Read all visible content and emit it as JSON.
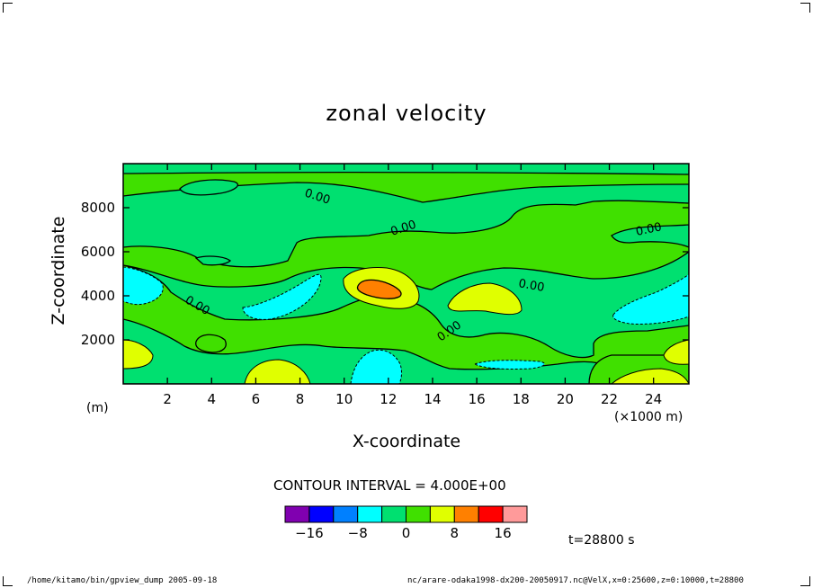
{
  "chart_data": {
    "type": "heatmap",
    "title": "zonal velocity",
    "xlabel": "X-coordinate",
    "ylabel": "Z-coordinate",
    "x_unit": "(×1000 m)",
    "y_unit": "(m)",
    "x_ticks": [
      "2",
      "4",
      "6",
      "8",
      "10",
      "12",
      "14",
      "16",
      "18",
      "20",
      "22",
      "24"
    ],
    "y_ticks": [
      "2000",
      "4000",
      "6000",
      "8000"
    ],
    "xlim": [
      0,
      25.6
    ],
    "ylim": [
      0,
      10000
    ],
    "contour_interval": "CONTOUR INTERVAL = 4.000E+00",
    "contour_labels": [
      "0.00",
      "0.00",
      "0.00",
      "0.00",
      "0.00",
      "0.00"
    ],
    "colorbar": {
      "levels": [
        -20,
        -16,
        -12,
        -8,
        -4,
        0,
        4,
        8,
        12,
        16,
        20
      ],
      "colors": [
        "#8000b0",
        "#0000ff",
        "#0080ff",
        "#00ffff",
        "#00e070",
        "#40e000",
        "#e0ff00",
        "#ff8000",
        "#ff0000",
        "#ff9a9a"
      ],
      "labels": [
        "−16",
        "−8",
        "0",
        "8",
        "16"
      ],
      "label_values": [
        -16,
        -8,
        0,
        8,
        16
      ]
    },
    "time": "t=28800 s"
  },
  "footer": {
    "left": "/home/kitamo/bin/gpview_dump  2005-09-18",
    "right": "nc/arare-odaka1998-dx200-20050917.nc@VelX,x=0:25600,z=0:10000,t=28800"
  }
}
